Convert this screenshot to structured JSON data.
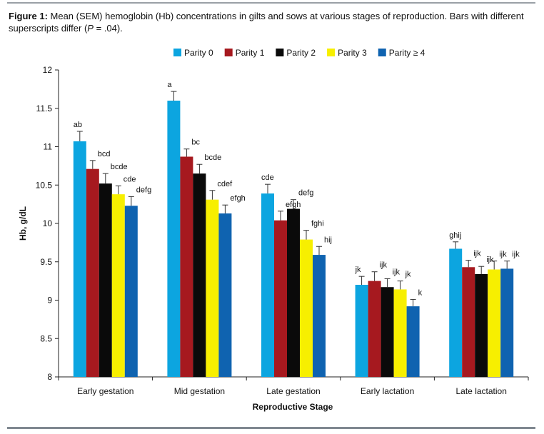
{
  "caption": {
    "figure_label": "Figure 1:",
    "text_before_p": " Mean (SEM) hemoglobin (Hb) concentrations in gilts and sows at various stages of reproduction. Bars with different superscripts differ (",
    "p_symbol": "P",
    "text_after_p": " = .04)."
  },
  "chart_data": {
    "type": "bar",
    "title": "",
    "xlabel": "Reproductive Stage",
    "ylabel": "Hb, g/dL",
    "ylim": [
      8,
      12
    ],
    "yticks": [
      8,
      8.5,
      9,
      9.5,
      10,
      10.5,
      11,
      11.5,
      12
    ],
    "ytick_labels": [
      "8",
      "8.5",
      "9",
      "9.5",
      "10",
      "10.5",
      "11",
      "11.5",
      "12"
    ],
    "grid": false,
    "legend_position": "top",
    "error_bars": "SEM",
    "categories": [
      "Early gestation",
      "Mid gestation",
      "Late gestation",
      "Early lactation",
      "Late lactation"
    ],
    "series": [
      {
        "name": "Parity 0",
        "color": "#0ca5e0",
        "values": [
          11.07,
          11.6,
          10.39,
          9.2,
          9.67
        ],
        "sem": [
          0.13,
          0.12,
          0.12,
          0.11,
          0.09
        ],
        "labels": [
          "ab",
          "a",
          "cde",
          "jk",
          "ghij"
        ]
      },
      {
        "name": "Parity 1",
        "color": "#a6191f",
        "values": [
          10.71,
          10.87,
          10.04,
          9.25,
          9.43
        ],
        "sem": [
          0.11,
          0.1,
          0.12,
          0.12,
          0.09
        ],
        "labels": [
          "bcd",
          "bc",
          "efgh",
          "ijk",
          "ijk"
        ]
      },
      {
        "name": "Parity 2",
        "color": "#0a0a0a",
        "values": [
          10.52,
          10.65,
          10.19,
          9.17,
          9.34
        ],
        "sem": [
          0.13,
          0.12,
          0.12,
          0.11,
          0.1
        ],
        "labels": [
          "bcde",
          "bcde",
          "defg",
          "ijk",
          "ijk"
        ]
      },
      {
        "name": "Parity 3",
        "color": "#f7ef00",
        "values": [
          10.38,
          10.31,
          9.79,
          9.14,
          9.4
        ],
        "sem": [
          0.11,
          0.12,
          0.12,
          0.11,
          0.11
        ],
        "labels": [
          "cde",
          "cdef",
          "fghi",
          "jk",
          "ijk"
        ]
      },
      {
        "name": "Parity ≥ 4",
        "color": "#0f63b0",
        "values": [
          10.23,
          10.13,
          9.59,
          8.92,
          9.41
        ],
        "sem": [
          0.12,
          0.11,
          0.11,
          0.09,
          0.1
        ],
        "labels": [
          "defg",
          "efgh",
          "hij",
          "k",
          "ijk"
        ]
      }
    ]
  }
}
